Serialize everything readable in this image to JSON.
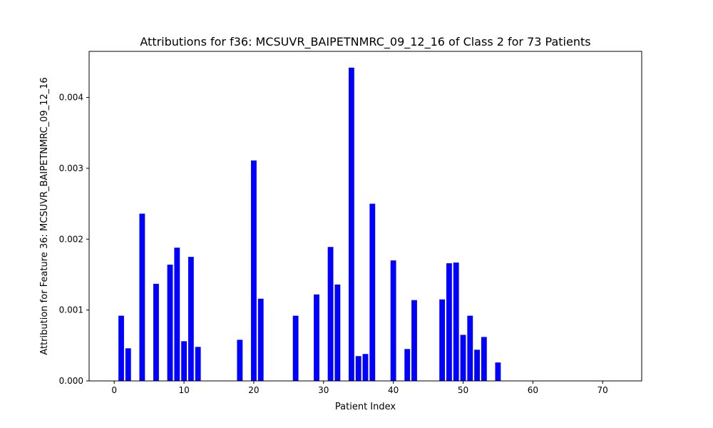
{
  "chart_data": {
    "type": "bar",
    "title": "Attributions for f36: MCSUVR_BAIPETNMRC_09_12_16 of Class 2 for 73 Patients",
    "xlabel": "Patient Index",
    "ylabel": "Attribution for Feature 36: MCSUVR_BAIPETNMRC_09_12_16",
    "xlim": [
      -3.6,
      75.6
    ],
    "ylim": [
      0,
      0.00465
    ],
    "xticks": [
      0,
      10,
      20,
      30,
      40,
      50,
      60,
      70
    ],
    "yticks": [
      0.0,
      0.001,
      0.002,
      0.003,
      0.004
    ],
    "ytick_labels": [
      "0.000",
      "0.001",
      "0.002",
      "0.003",
      "0.004"
    ],
    "bar_color": "#0000ff",
    "grid": false,
    "legend": "none",
    "x": [
      0,
      1,
      2,
      3,
      4,
      5,
      6,
      7,
      8,
      9,
      10,
      11,
      12,
      13,
      14,
      15,
      16,
      17,
      18,
      19,
      20,
      21,
      22,
      23,
      24,
      25,
      26,
      27,
      28,
      29,
      30,
      31,
      32,
      33,
      34,
      35,
      36,
      37,
      38,
      39,
      40,
      41,
      42,
      43,
      44,
      45,
      46,
      47,
      48,
      49,
      50,
      51,
      52,
      53,
      54,
      55,
      56,
      57,
      58,
      59,
      60,
      61,
      62,
      63,
      64,
      65,
      66,
      67,
      68,
      69,
      70,
      71,
      72
    ],
    "values": [
      0,
      0.00092,
      0.00046,
      0,
      0.00236,
      0,
      0.00137,
      0,
      0.00164,
      0.00188,
      0.00056,
      0.00175,
      0.00048,
      0,
      0,
      0,
      0,
      0,
      0.00058,
      0,
      0.00311,
      0.00116,
      0,
      0,
      0,
      0,
      0.00092,
      0,
      0,
      0.00122,
      0,
      0.00189,
      0.00136,
      0,
      0.00442,
      0.00035,
      0.00038,
      0.0025,
      0,
      0,
      0.0017,
      0,
      0.00045,
      0.00114,
      0,
      0,
      0,
      0.00115,
      0.00166,
      0.00167,
      0.00065,
      0.00092,
      0.00044,
      0.00062,
      0,
      0.00026,
      0,
      0,
      0,
      0,
      0,
      0,
      0,
      0,
      0,
      0,
      0,
      0,
      0,
      0,
      0,
      0,
      0
    ]
  }
}
